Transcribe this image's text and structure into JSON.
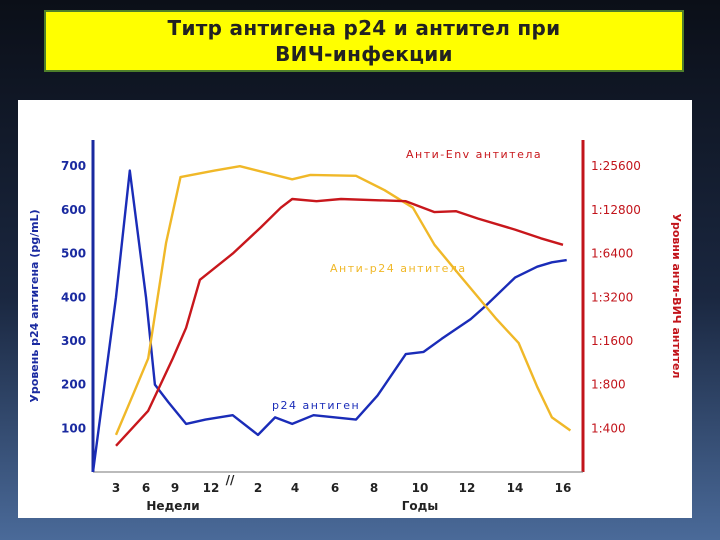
{
  "title": {
    "line1": "Титр антигена р24 и антител при",
    "line2": "ВИЧ-инфекции"
  },
  "chart_data": {
    "type": "line",
    "title": "Титр антигена р24 и антител при ВИЧ-инфекции",
    "x_ticks": [
      "3",
      "6",
      "9",
      "12",
      "2",
      "4",
      "6",
      "8",
      "10",
      "12",
      "14",
      "16"
    ],
    "x_sections": [
      {
        "label": "Недели",
        "ticks": [
          "3",
          "6",
          "9",
          "12"
        ]
      },
      {
        "label": "Годы",
        "ticks": [
          "2",
          "4",
          "6",
          "8",
          "10",
          "12",
          "14",
          "16"
        ]
      }
    ],
    "axis_break_marker": "//",
    "left_axis": {
      "label": "Уровень р24 антигена (pg/mL)",
      "ticks": [
        100,
        200,
        300,
        400,
        500,
        600,
        700
      ],
      "range": [
        0,
        760
      ]
    },
    "right_axis": {
      "label": "Уровни анти-ВИЧ антител",
      "ticks": [
        "1:400",
        "1:800",
        "1:1600",
        "1:3200",
        "1:6400",
        "1:12800",
        "1:25600"
      ]
    },
    "series": [
      {
        "name": "р24 антиген",
        "axis": "left",
        "color": "#1a2cb8",
        "points": [
          [
            0.0,
            0
          ],
          [
            1.0,
            400
          ],
          [
            1.6,
            690
          ],
          [
            2.3,
            400
          ],
          [
            2.7,
            200
          ],
          [
            3.3,
            160
          ],
          [
            4.0,
            110
          ],
          [
            4.7,
            120
          ],
          [
            5.5,
            130
          ],
          [
            6.2,
            85
          ],
          [
            6.8,
            125
          ],
          [
            7.4,
            110
          ],
          [
            8.1,
            130
          ],
          [
            9.5,
            120
          ],
          [
            10.2,
            175
          ],
          [
            11.0,
            270
          ],
          [
            11.5,
            275
          ],
          [
            12.0,
            305
          ],
          [
            12.8,
            350
          ],
          [
            13.2,
            380
          ],
          [
            14.0,
            445
          ],
          [
            14.6,
            470
          ],
          [
            15.0,
            480
          ],
          [
            15.4,
            485
          ]
        ]
      },
      {
        "name": "Анти-р24 антитела",
        "axis": "right",
        "color": "#f0b828",
        "points": [
          [
            1.0,
            -0.15
          ],
          [
            1.8,
            0.85
          ],
          [
            2.4,
            1.6
          ],
          [
            3.2,
            4.25
          ],
          [
            3.8,
            5.75
          ],
          [
            5.0,
            5.9
          ],
          [
            5.7,
            6.0
          ],
          [
            7.4,
            5.7
          ],
          [
            8.0,
            5.8
          ],
          [
            9.5,
            5.78
          ],
          [
            10.4,
            5.45
          ],
          [
            11.2,
            5.05
          ],
          [
            11.8,
            4.2
          ],
          [
            12.5,
            3.5
          ],
          [
            13.5,
            2.5
          ],
          [
            14.1,
            1.95
          ],
          [
            14.6,
            0.95
          ],
          [
            15.0,
            0.25
          ],
          [
            15.5,
            -0.05
          ]
        ]
      },
      {
        "name": "Анти-Env антитела",
        "axis": "right",
        "color": "#c8171c",
        "points": [
          [
            1.0,
            -0.4
          ],
          [
            2.4,
            0.4
          ],
          [
            3.5,
            1.6
          ],
          [
            4.0,
            2.3
          ],
          [
            4.5,
            3.4
          ],
          [
            5.5,
            4.0
          ],
          [
            6.3,
            4.6
          ],
          [
            7.0,
            5.05
          ],
          [
            7.4,
            5.25
          ],
          [
            8.2,
            5.2
          ],
          [
            9.0,
            5.25
          ],
          [
            11.0,
            5.2
          ],
          [
            11.8,
            4.95
          ],
          [
            12.4,
            4.97
          ],
          [
            13.0,
            4.8
          ],
          [
            14.0,
            4.55
          ],
          [
            14.7,
            4.35
          ],
          [
            15.3,
            4.2
          ]
        ]
      }
    ],
    "annotations": [
      {
        "text": "Анти-Env антитела",
        "series": "Анти-Env антитела"
      },
      {
        "text": "Анти-р24 антитела",
        "series": "Анти-р24 антитела"
      },
      {
        "text": "р24 антиген",
        "series": "р24 антиген"
      }
    ]
  }
}
